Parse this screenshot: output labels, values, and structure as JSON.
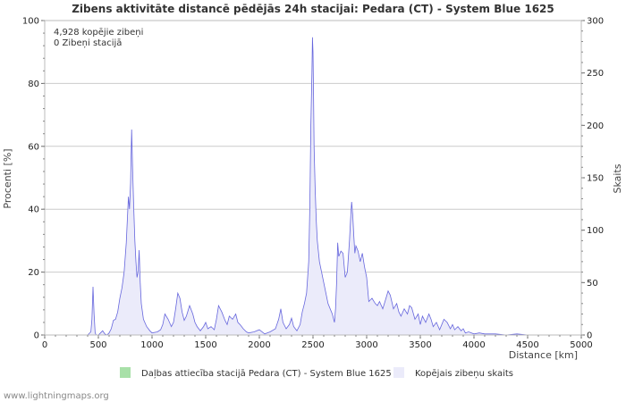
{
  "chart_data": {
    "type": "area",
    "title": "Zibens aktivitāte distancē pēdējās 24h stacijai: Pedara (CT) - System Blue 1625",
    "xlabel": "Distance   [km]",
    "ylabel_left": "Procenti   [%]",
    "ylabel_right": "Skaits",
    "xlim": [
      0,
      5000
    ],
    "ylim_left": [
      0,
      100
    ],
    "ylim_right": [
      0,
      300
    ],
    "x_ticks": [
      "0",
      "500",
      "1000",
      "1500",
      "2000",
      "2500",
      "3000",
      "3500",
      "4000",
      "4500",
      "5000"
    ],
    "y_left_ticks": [
      "0",
      "20",
      "40",
      "60",
      "80",
      "100"
    ],
    "y_right_ticks": [
      "0",
      "50",
      "100",
      "150",
      "200",
      "250",
      "300"
    ],
    "annotations": [
      "4,928 kopējie zibeņi",
      "0 Zibeņi stacijā"
    ],
    "legend": [
      {
        "label": "Daļbas attiecība stacijā Pedara (CT) - System Blue 1625",
        "color": "#a8e0a8"
      },
      {
        "label": "Kopējais zibeņu skaits",
        "color": "#ebebfa"
      }
    ],
    "series": [
      {
        "name": "Kopējais zibeņu skaits",
        "axis": "right",
        "color": "#6666dd",
        "fill": "#ebebfa",
        "x": [
          0,
          400,
          430,
          440,
          450,
          460,
          470,
          480,
          500,
          520,
          540,
          560,
          580,
          600,
          620,
          640,
          660,
          680,
          700,
          720,
          740,
          760,
          770,
          780,
          790,
          800,
          810,
          820,
          830,
          840,
          850,
          860,
          870,
          880,
          890,
          900,
          920,
          950,
          980,
          1000,
          1050,
          1080,
          1100,
          1120,
          1150,
          1180,
          1200,
          1220,
          1240,
          1260,
          1280,
          1300,
          1320,
          1350,
          1380,
          1400,
          1420,
          1450,
          1480,
          1500,
          1520,
          1550,
          1580,
          1600,
          1620,
          1650,
          1680,
          1700,
          1720,
          1750,
          1780,
          1800,
          1820,
          1850,
          1880,
          1900,
          1950,
          2000,
          2050,
          2100,
          2150,
          2180,
          2200,
          2220,
          2250,
          2280,
          2300,
          2320,
          2350,
          2380,
          2400,
          2420,
          2440,
          2460,
          2470,
          2480,
          2490,
          2495,
          2500,
          2505,
          2510,
          2520,
          2530,
          2540,
          2560,
          2580,
          2600,
          2620,
          2640,
          2660,
          2680,
          2700,
          2710,
          2720,
          2730,
          2740,
          2760,
          2780,
          2800,
          2820,
          2840,
          2850,
          2860,
          2870,
          2880,
          2890,
          2900,
          2920,
          2940,
          2960,
          2980,
          3000,
          3020,
          3050,
          3080,
          3100,
          3120,
          3150,
          3180,
          3200,
          3220,
          3250,
          3280,
          3300,
          3320,
          3350,
          3380,
          3400,
          3420,
          3450,
          3480,
          3500,
          3520,
          3550,
          3580,
          3600,
          3620,
          3650,
          3680,
          3700,
          3720,
          3750,
          3780,
          3800,
          3820,
          3850,
          3880,
          3900,
          3920,
          3950,
          4000,
          4050,
          4100,
          4150,
          4200,
          4300,
          4400,
          4500,
          4600,
          4700,
          5000
        ],
        "values": [
          0,
          0,
          3,
          15,
          46,
          20,
          2,
          0,
          0,
          2,
          4,
          1,
          0,
          2,
          6,
          14,
          15,
          22,
          35,
          45,
          60,
          88,
          110,
          132,
          120,
          145,
          196,
          155,
          120,
          90,
          70,
          55,
          60,
          81,
          50,
          30,
          15,
          8,
          4,
          2,
          3,
          5,
          10,
          20,
          15,
          8,
          12,
          25,
          40,
          35,
          22,
          14,
          18,
          28,
          20,
          12,
          8,
          4,
          8,
          12,
          6,
          8,
          5,
          15,
          28,
          22,
          14,
          10,
          18,
          15,
          20,
          12,
          10,
          6,
          3,
          2,
          3,
          5,
          1,
          3,
          6,
          15,
          25,
          12,
          6,
          10,
          16,
          8,
          4,
          10,
          22,
          30,
          40,
          70,
          120,
          200,
          250,
          284,
          270,
          230,
          180,
          140,
          110,
          90,
          70,
          60,
          50,
          40,
          30,
          25,
          20,
          12,
          25,
          50,
          88,
          75,
          80,
          78,
          55,
          60,
          90,
          110,
          127,
          115,
          95,
          78,
          85,
          80,
          70,
          78,
          65,
          55,
          32,
          35,
          30,
          28,
          32,
          25,
          35,
          42,
          38,
          25,
          30,
          22,
          18,
          25,
          20,
          28,
          26,
          15,
          20,
          10,
          18,
          12,
          20,
          15,
          8,
          12,
          5,
          10,
          15,
          12,
          6,
          10,
          5,
          8,
          4,
          6,
          2,
          3,
          1,
          2,
          1,
          1,
          1,
          0,
          1,
          0,
          0,
          0,
          0
        ]
      }
    ]
  },
  "footer": "www.lightningmaps.org"
}
